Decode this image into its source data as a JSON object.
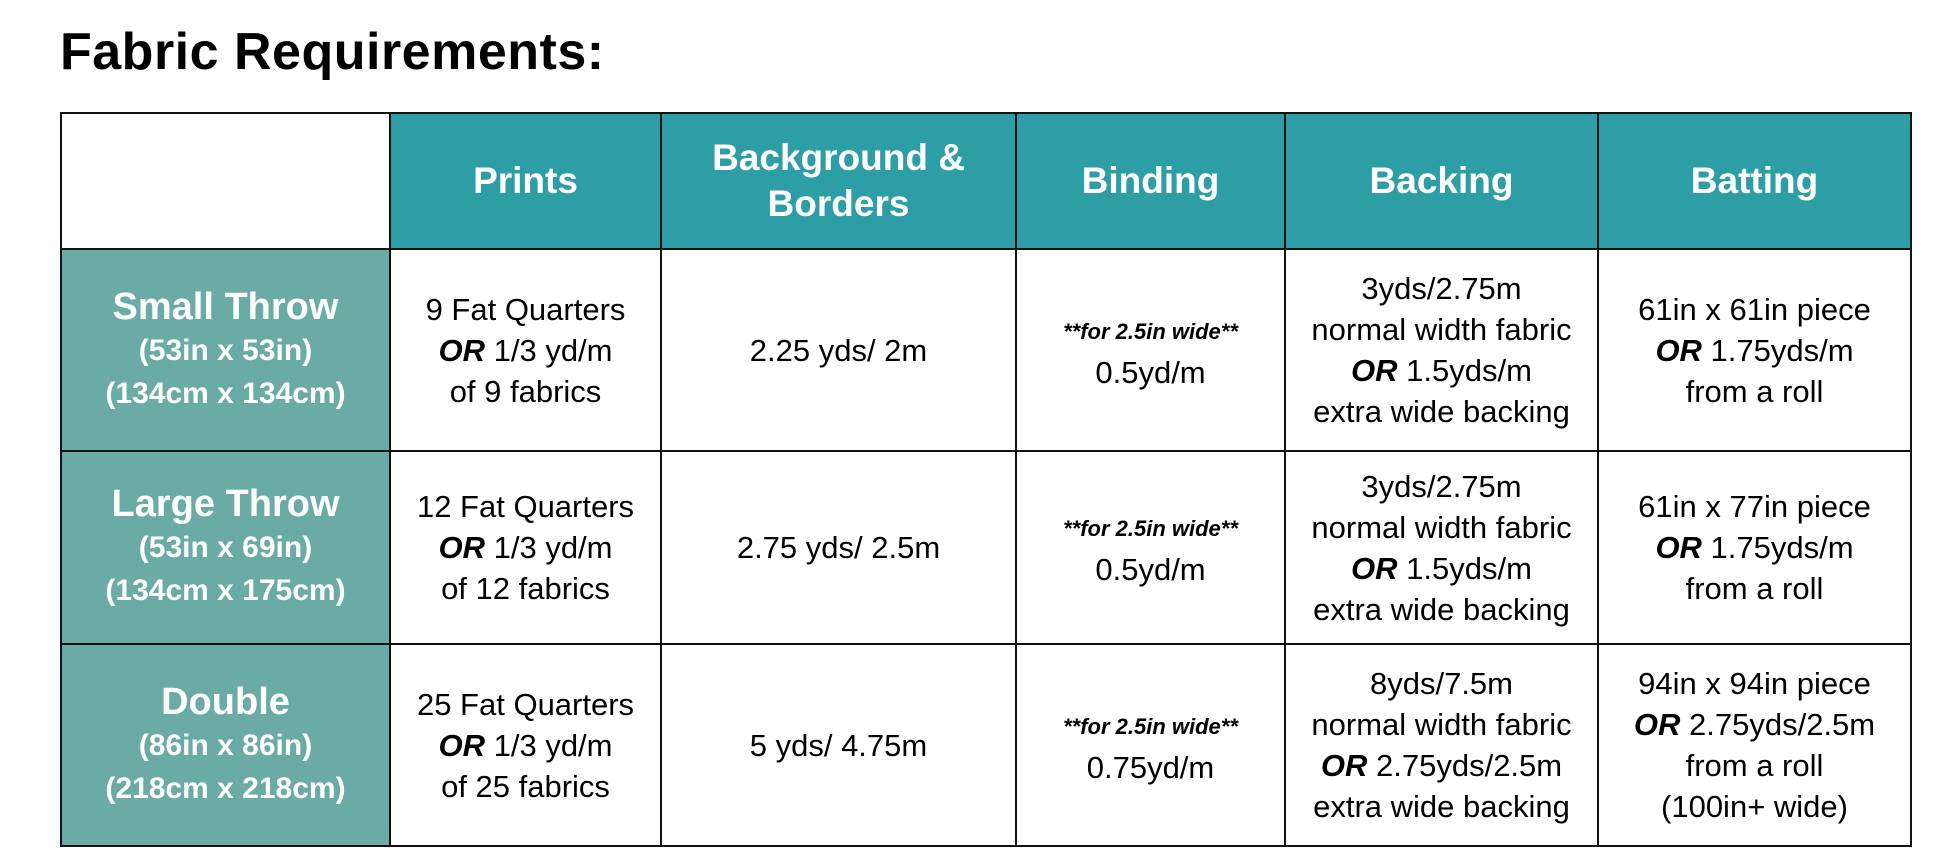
{
  "title": "Fabric Requirements:",
  "colors": {
    "header": "#2e9ea6",
    "row_header": "#6aaba6"
  },
  "headers": [
    "Prints",
    "Background & Borders",
    "Binding",
    "Backing",
    "Batting"
  ],
  "rows": [
    {
      "label": [
        "Small Throw",
        "(53in x 53in)",
        "(134cm x 134cm)"
      ],
      "cells": [
        [
          {
            "text": "9 Fat Quarters"
          },
          {
            "or": "OR",
            "text": " 1/3 yd/m"
          },
          {
            "text": "of 9 fabrics"
          }
        ],
        [
          {
            "text": "2.25 yds/ 2m"
          }
        ],
        [
          {
            "note": "**for 2.5in wide**"
          },
          {
            "text": "0.5yd/m"
          }
        ],
        [
          {
            "text": "3yds/2.75m"
          },
          {
            "text": "normal width fabric"
          },
          {
            "or": "OR",
            "text": " 1.5yds/m"
          },
          {
            "text": "extra wide backing"
          }
        ],
        [
          {
            "text": "61in x 61in piece"
          },
          {
            "or": "OR",
            "text": " 1.75yds/m"
          },
          {
            "text": "from a roll"
          }
        ]
      ]
    },
    {
      "label": [
        "Large Throw",
        "(53in x 69in)",
        "(134cm x 175cm)"
      ],
      "cells": [
        [
          {
            "text": "12 Fat Quarters"
          },
          {
            "or": "OR",
            "text": " 1/3 yd/m"
          },
          {
            "text": "of 12 fabrics"
          }
        ],
        [
          {
            "text": "2.75 yds/ 2.5m"
          }
        ],
        [
          {
            "note": "**for 2.5in wide**"
          },
          {
            "text": "0.5yd/m"
          }
        ],
        [
          {
            "text": "3yds/2.75m"
          },
          {
            "text": "normal width fabric"
          },
          {
            "or": "OR",
            "text": " 1.5yds/m"
          },
          {
            "text": "extra wide backing"
          }
        ],
        [
          {
            "text": "61in x 77in piece"
          },
          {
            "or": "OR",
            "text": " 1.75yds/m"
          },
          {
            "text": "from a roll"
          }
        ]
      ]
    },
    {
      "label": [
        "Double",
        "(86in x 86in)",
        "(218cm x 218cm)"
      ],
      "cells": [
        [
          {
            "text": "25 Fat Quarters"
          },
          {
            "or": "OR",
            "text": " 1/3 yd/m"
          },
          {
            "text": "of 25 fabrics"
          }
        ],
        [
          {
            "text": "5 yds/ 4.75m"
          }
        ],
        [
          {
            "note": "**for 2.5in wide**"
          },
          {
            "text": "0.75yd/m"
          }
        ],
        [
          {
            "text": "8yds/7.5m"
          },
          {
            "text": "normal width fabric"
          },
          {
            "or": "OR",
            "text": " 2.75yds/2.5m"
          },
          {
            "text": "extra wide backing"
          }
        ],
        [
          {
            "text": "94in x 94in piece"
          },
          {
            "or": "OR",
            "text": " 2.75yds/2.5m"
          },
          {
            "text": "from a roll"
          },
          {
            "text": "(100in+ wide)"
          }
        ]
      ]
    }
  ]
}
